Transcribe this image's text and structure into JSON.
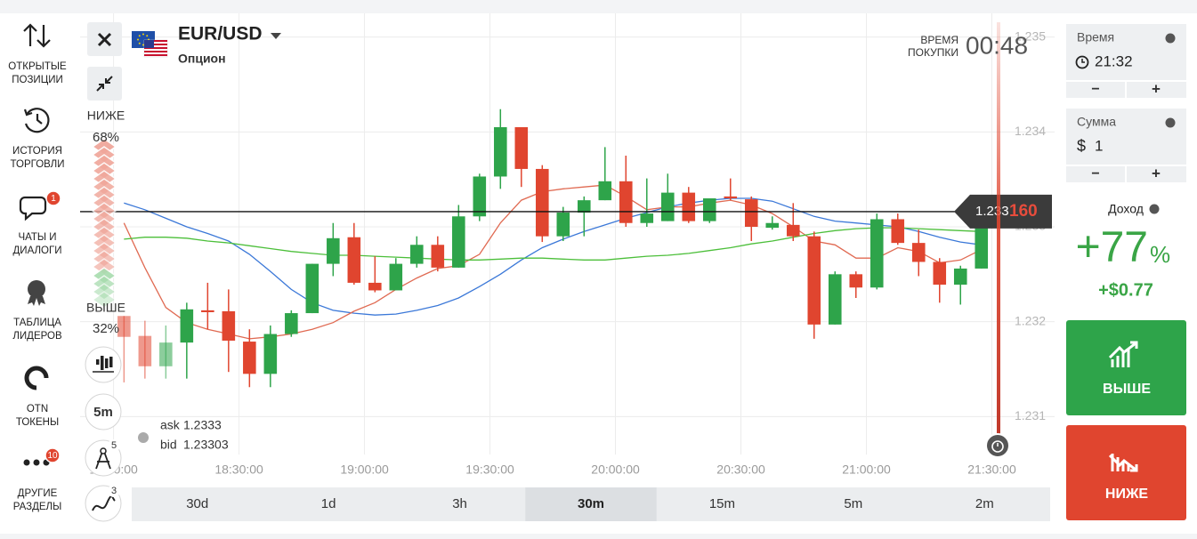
{
  "sidebar": [
    {
      "lines": [
        "ОТКРЫТЫЕ",
        "ПОЗИЦИИ"
      ]
    },
    {
      "lines": [
        "ИСТОРИЯ",
        "ТОРГОВЛИ"
      ]
    },
    {
      "lines": [
        "ЧАТЫ И",
        "ДИАЛОГИ"
      ],
      "badge": "1"
    },
    {
      "lines": [
        "ТАБЛИЦА",
        "ЛИДЕРОВ"
      ]
    },
    {
      "lines": [
        "OTN",
        "ТОКЕНЫ"
      ]
    },
    {
      "lines": [
        "ДРУГИЕ",
        "РАЗДЕЛЫ"
      ],
      "badge": "10"
    }
  ],
  "header": {
    "pair": "EUR/USD",
    "kind": "Опцион",
    "purchase_label": [
      "ВРЕМЯ",
      "ПОКУПКИ"
    ],
    "countdown": "00:48"
  },
  "sentiment": {
    "down_label": "НИЖЕ",
    "down_pct": "68%",
    "up_label": "ВЫШЕ",
    "up_pct": "32%"
  },
  "tools": {
    "timeframe": "5m",
    "drawing_badge": "5",
    "indicator_badge": "3"
  },
  "quotes": {
    "ask_label": "ask",
    "ask": "1.2333",
    "bid_label": "bid",
    "bid": "1.23303"
  },
  "periods": [
    "30d",
    "1d",
    "3h",
    "30m",
    "15m",
    "5m",
    "2m"
  ],
  "selected_period": "30m",
  "trade": {
    "time_label": "Время",
    "time": "21:32",
    "amount_label": "Сумма",
    "currency": "$",
    "amount": "1",
    "minus": "−",
    "plus": "+",
    "profit_label": "Доход",
    "profit_percent": "+77",
    "percent_sign": "%",
    "profit_amount": "+$0.77",
    "up_button": "ВЫШЕ",
    "down_button": "НИЖЕ"
  },
  "chart_data": {
    "type": "candlestick",
    "x": [
      "18:00:00",
      "18:05:00",
      "18:10:00",
      "18:15:00",
      "18:20:00",
      "18:25:00",
      "18:30:00",
      "18:35:00",
      "18:40:00",
      "18:45:00",
      "18:50:00",
      "18:55:00",
      "19:00:00",
      "19:05:00",
      "19:10:00",
      "19:15:00",
      "19:20:00",
      "19:25:00",
      "19:30:00",
      "19:35:00",
      "19:40:00",
      "19:45:00",
      "19:50:00",
      "19:55:00",
      "20:00:00",
      "20:05:00",
      "20:10:00",
      "20:15:00",
      "20:20:00",
      "20:25:00",
      "20:30:00",
      "20:35:00",
      "20:40:00",
      "20:45:00",
      "20:50:00",
      "20:55:00",
      "21:00:00",
      "21:05:00",
      "21:10:00",
      "21:15:00",
      "21:20:00",
      "21:25:00"
    ],
    "open": [
      1.23206,
      1.23185,
      1.23153,
      1.23178,
      1.23212,
      1.23211,
      1.23179,
      1.23145,
      1.23187,
      1.23209,
      1.23261,
      1.23289,
      1.23241,
      1.23233,
      1.23261,
      1.23281,
      1.23257,
      1.23311,
      1.23353,
      1.23405,
      1.23361,
      1.2329,
      1.23315,
      1.23328,
      1.23348,
      1.23304,
      1.23306,
      1.23336,
      1.23306,
      1.23332,
      1.23329,
      1.23299,
      1.23302,
      1.2329,
      1.23197,
      1.2325,
      1.23236,
      1.23308,
      1.23283,
      1.23263,
      1.23239,
      1.23256
    ],
    "high": [
      1.23206,
      1.23201,
      1.23196,
      1.2322,
      1.23241,
      1.23234,
      1.23192,
      1.23196,
      1.23212,
      1.23261,
      1.23304,
      1.23304,
      1.23269,
      1.23267,
      1.2329,
      1.2329,
      1.23323,
      1.23356,
      1.23424,
      1.23405,
      1.23365,
      1.23321,
      1.23332,
      1.23384,
      1.23375,
      1.23351,
      1.23356,
      1.23342,
      1.2333,
      1.23351,
      1.23332,
      1.23311,
      1.23325,
      1.23295,
      1.23253,
      1.23253,
      1.23314,
      1.23314,
      1.23297,
      1.23267,
      1.23259,
      1.23314
    ],
    "low": [
      1.23136,
      1.2314,
      1.2314,
      1.2314,
      1.23192,
      1.23147,
      1.23131,
      1.23131,
      1.23184,
      1.23209,
      1.23248,
      1.23239,
      1.23231,
      1.23233,
      1.23257,
      1.23253,
      1.23257,
      1.23306,
      1.2334,
      1.23342,
      1.23284,
      1.23285,
      1.2329,
      1.23328,
      1.233,
      1.233,
      1.23306,
      1.23304,
      1.23304,
      1.23328,
      1.23285,
      1.23297,
      1.23285,
      1.23182,
      1.23197,
      1.23225,
      1.23234,
      1.23281,
      1.23248,
      1.2322,
      1.23218,
      1.23256
    ],
    "close": [
      1.23184,
      1.23153,
      1.23178,
      1.23213,
      1.2321,
      1.2318,
      1.23145,
      1.23187,
      1.23209,
      1.23261,
      1.23288,
      1.23241,
      1.23233,
      1.23261,
      1.23281,
      1.23257,
      1.23311,
      1.23353,
      1.23405,
      1.23361,
      1.2329,
      1.23315,
      1.23328,
      1.23348,
      1.23304,
      1.23314,
      1.23336,
      1.23306,
      1.2333,
      1.2333,
      1.233,
      1.23304,
      1.2329,
      1.23197,
      1.2325,
      1.23236,
      1.23308,
      1.23283,
      1.23263,
      1.23239,
      1.23256,
      1.23299
    ],
    "up_color": "#2ea44a",
    "down_color": "#e0452f",
    "lines": [
      {
        "color": "#3b78d8",
        "values": [
          1.23325,
          1.23318,
          1.23309,
          1.233,
          1.23293,
          1.23285,
          1.23271,
          1.23253,
          1.23234,
          1.2322,
          1.23212,
          1.23209,
          1.23207,
          1.23208,
          1.23212,
          1.23217,
          1.23225,
          1.23237,
          1.2325,
          1.23265,
          1.23278,
          1.23287,
          1.23295,
          1.23302,
          1.23309,
          1.23315,
          1.23321,
          1.23325,
          1.23328,
          1.2333,
          1.2333,
          1.23327,
          1.23319,
          1.23311,
          1.23306,
          1.23304,
          1.23302,
          1.233,
          1.23295,
          1.23289,
          1.23284,
          1.23281
        ]
      },
      {
        "color": "#e06a52",
        "values": [
          1.23304,
          1.23257,
          1.23215,
          1.23199,
          1.23192,
          1.23187,
          1.23182,
          1.23184,
          1.23187,
          1.23192,
          1.23199,
          1.23211,
          1.2322,
          1.23234,
          1.23246,
          1.23256,
          1.23259,
          1.23271,
          1.23304,
          1.23328,
          1.23337,
          1.2334,
          1.23342,
          1.23344,
          1.23332,
          1.23318,
          1.23321,
          1.23321,
          1.23325,
          1.23328,
          1.23323,
          1.23314,
          1.233,
          1.23285,
          1.23281,
          1.23267,
          1.23267,
          1.23278,
          1.23274,
          1.23262,
          1.23265,
          1.23276
        ]
      },
      {
        "color": "#4cbf3a",
        "values": [
          1.23287,
          1.23289,
          1.23289,
          1.23288,
          1.23285,
          1.23283,
          1.2328,
          1.23277,
          1.23274,
          1.23272,
          1.2327,
          1.2327,
          1.23269,
          1.23268,
          1.23267,
          1.23266,
          1.23265,
          1.23265,
          1.23266,
          1.23267,
          1.23267,
          1.23266,
          1.23265,
          1.23265,
          1.23267,
          1.23269,
          1.2327,
          1.23272,
          1.23275,
          1.23278,
          1.23282,
          1.23285,
          1.23289,
          1.23293,
          1.23296,
          1.23298,
          1.23299,
          1.23299,
          1.23298,
          1.23297,
          1.23296,
          1.23295
        ]
      }
    ],
    "xlim": [
      "17:52:00",
      "21:45:00"
    ],
    "xticks": [
      "18:00:00",
      "18:30:00",
      "19:00:00",
      "19:30:00",
      "20:00:00",
      "20:30:00",
      "21:00:00",
      "21:30:00"
    ],
    "ylim": [
      1.2306,
      1.23525
    ],
    "yticks": [
      1.231,
      1.232,
      1.233,
      1.234,
      1.235
    ],
    "grid": true,
    "current_price": 1.23316,
    "current_price_label": {
      "main": "1.233",
      "pips": "160"
    }
  }
}
